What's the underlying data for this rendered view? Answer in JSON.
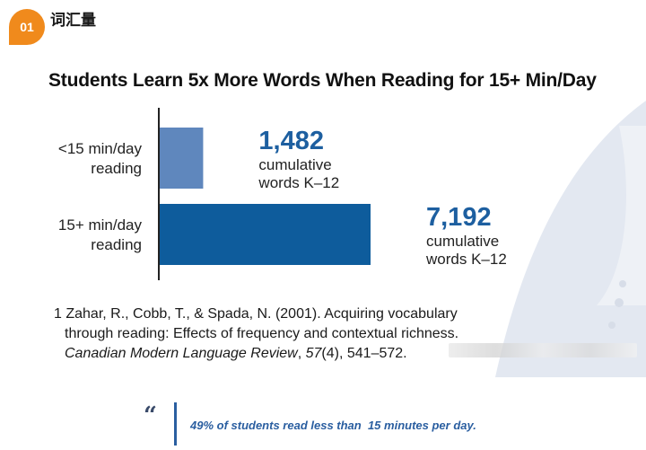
{
  "header": {
    "badge_number": "01",
    "section_title": "词汇量"
  },
  "chart_data": {
    "type": "bar",
    "orientation": "horizontal",
    "title": "Students Learn 5x More Words When Reading for 15+ Min/Day",
    "categories": [
      {
        "line1": "<15 min/day",
        "line2": "reading"
      },
      {
        "line1": "15+ min/day",
        "line2": "reading"
      }
    ],
    "values": [
      1482,
      7192
    ],
    "value_labels": [
      "1,482",
      "7,192"
    ],
    "sublabel_line1": "cumulative",
    "sublabel_line2": "words K–12",
    "colors": [
      "#5f87bd",
      "#0e5c9c"
    ],
    "label_color": "#1d5fa0",
    "xlim": [
      0,
      8000
    ],
    "grid": false,
    "legend": "none"
  },
  "reference": {
    "line1": "1 Zahar, R., Cobb, T., & Spada, N. (2001). Acquiring vocabulary",
    "line2": "through reading: Effects of frequency and contextual richness.",
    "journal": "Canadian Modern Language Review",
    "comma": ", ",
    "volume": "57",
    "rest": "(4), 541–572."
  },
  "quote": {
    "mark": "“",
    "text": "49% of students read less than  15 minutes per day."
  },
  "colors": {
    "accent_orange": "#f08a1c",
    "deco_blue": "#dfe5ef"
  }
}
